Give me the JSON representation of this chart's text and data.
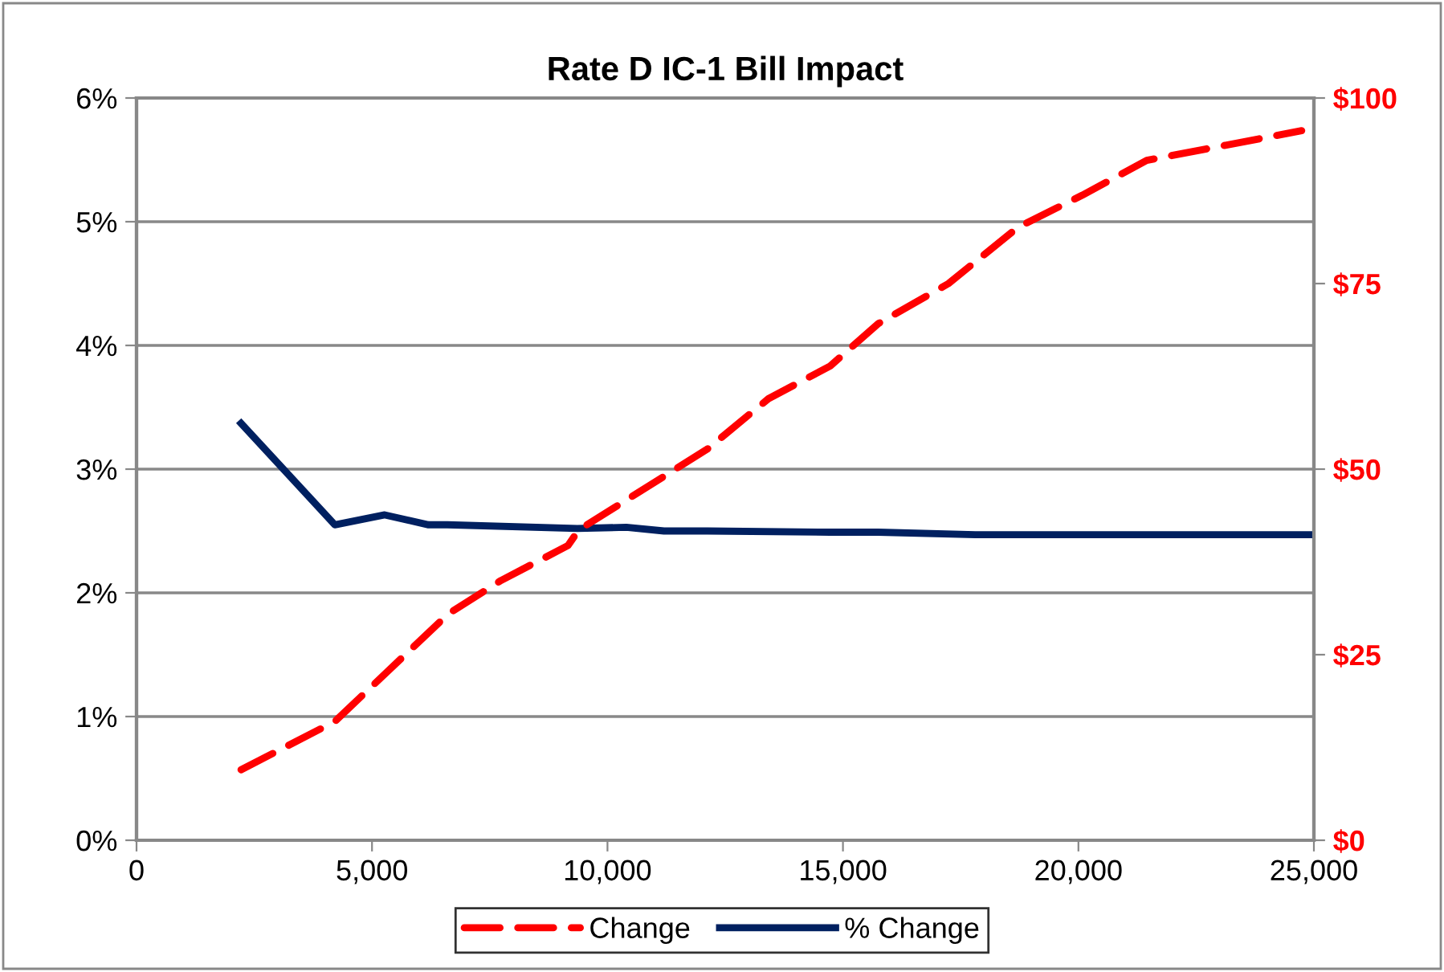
{
  "chart_data": {
    "type": "line",
    "title": "Rate D IC-1 Bill Impact",
    "series": [
      {
        "name": "Change",
        "color": "#ff0000",
        "axis": "y2",
        "line_style": "dashed",
        "x": [
          2220,
          4210,
          6620,
          7740,
          9160,
          9390,
          12120,
          13420,
          14730,
          15750,
          17240,
          18720,
          20080,
          21450,
          24740
        ],
        "values": [
          9.5,
          16.0,
          30.5,
          35.0,
          39.7,
          41.8,
          52.7,
          59.5,
          63.9,
          69.6,
          75.0,
          82.6,
          86.9,
          91.6,
          95.6
        ]
      },
      {
        "name": "% Change",
        "color": "#002060",
        "line_style": "solid",
        "x": [
          2220,
          4210,
          5270,
          6200,
          6600,
          9360,
          10400,
          11200,
          12120,
          14730,
          15750,
          17810,
          25000
        ],
        "values": [
          3.37,
          2.55,
          2.63,
          2.55,
          2.55,
          2.52,
          2.53,
          2.5,
          2.5,
          2.49,
          2.49,
          2.47,
          2.47
        ]
      }
    ],
    "xlim": [
      0,
      25000
    ],
    "xticks": [
      0,
      {
        "value": 5000,
        "label": "5,000"
      },
      {
        "value": 10000,
        "label": "10,000"
      },
      {
        "value": 15000,
        "label": "15,000"
      },
      {
        "value": 20000,
        "label": "20,000"
      },
      {
        "value": 25000,
        "label": "25,000"
      }
    ],
    "ylim": [
      0,
      6
    ],
    "yticks": [
      {
        "value": 0,
        "label": "0%"
      },
      {
        "value": 1,
        "label": "1%"
      },
      {
        "value": 2,
        "label": "2%"
      },
      {
        "value": 3,
        "label": "3%"
      },
      {
        "value": 4,
        "label": "4%"
      },
      {
        "value": 5,
        "label": "5%"
      },
      {
        "value": 6,
        "label": "6%"
      }
    ],
    "y2lim": [
      0,
      100
    ],
    "y2ticks": [
      {
        "value": 0,
        "label": "$0"
      },
      {
        "value": 25,
        "label": "$25"
      },
      {
        "value": 50,
        "label": "$50"
      },
      {
        "value": 75,
        "label": "$75"
      },
      {
        "value": 100,
        "label": "$100"
      }
    ],
    "grid": "y",
    "legend": "bottom",
    "marker": "none"
  }
}
